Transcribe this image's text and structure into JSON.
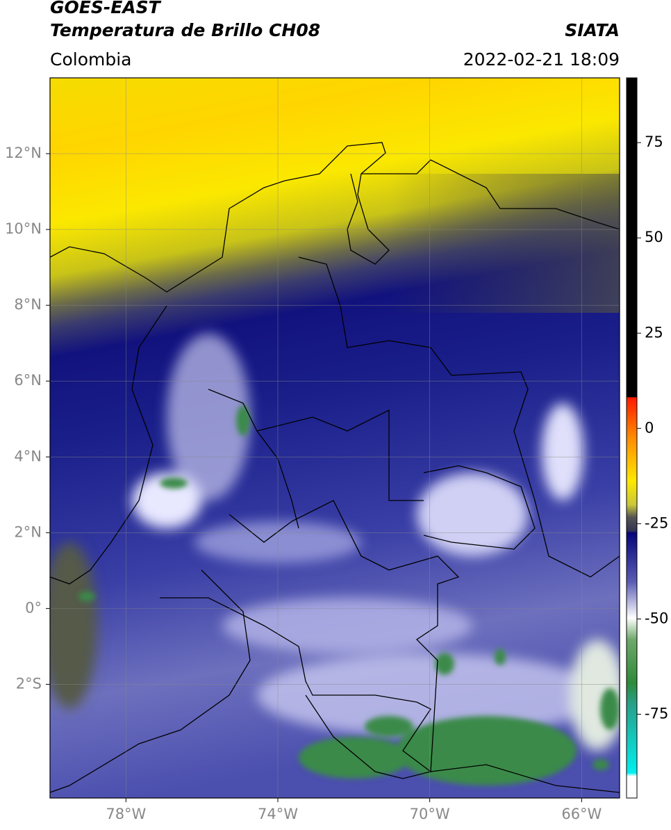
{
  "header": {
    "title": "GOES-EAST",
    "subtitle": "Temperatura de Brillo CH08",
    "source": "SIATA",
    "region": "Colombia",
    "datetime": "2022-02-21 18:09"
  },
  "map": {
    "xlim": [
      -80,
      -65
    ],
    "ylim": [
      -5,
      14
    ],
    "xticks": [
      {
        "value": -78,
        "label": "78°W"
      },
      {
        "value": -74,
        "label": "74°W"
      },
      {
        "value": -70,
        "label": "70°W"
      },
      {
        "value": -66,
        "label": "66°W"
      }
    ],
    "yticks": [
      {
        "value": 12,
        "label": "12°N"
      },
      {
        "value": 10,
        "label": "10°N"
      },
      {
        "value": 8,
        "label": "8°N"
      },
      {
        "value": 6,
        "label": "6°N"
      },
      {
        "value": 4,
        "label": "4°N"
      },
      {
        "value": 2,
        "label": "2°N"
      },
      {
        "value": 0,
        "label": "0°"
      },
      {
        "value": -2,
        "label": "2°S"
      }
    ],
    "grid": true
  },
  "colorbar": {
    "lim": [
      -97,
      92
    ],
    "ticks": [
      75,
      50,
      25,
      0,
      -25,
      -50,
      -75
    ]
  }
}
